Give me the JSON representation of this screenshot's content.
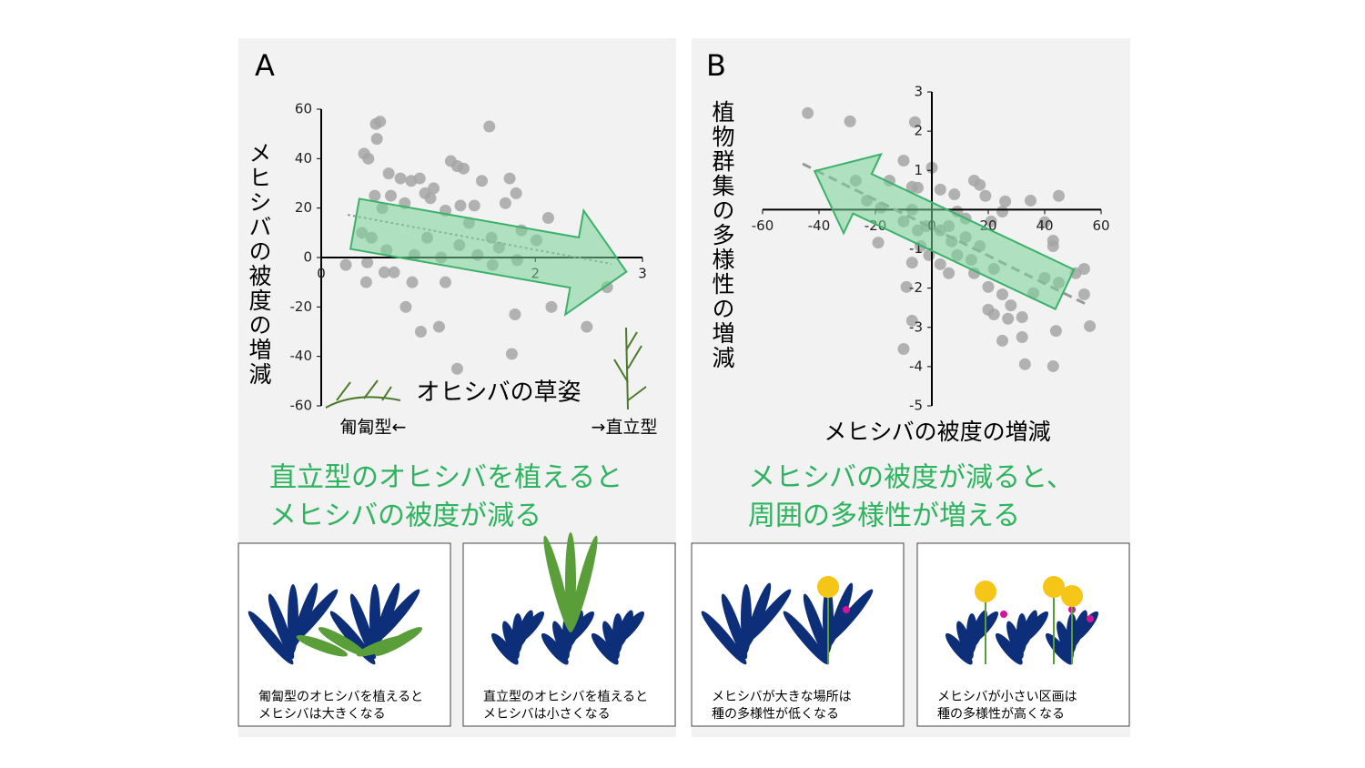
{
  "chart_data": [
    {
      "type": "scatter",
      "title": "A",
      "xlabel": "オヒシバの草姿",
      "ylabel": "メヒシバの被度の増減",
      "annotations": [
        "匍匐型←",
        "→直立型"
      ],
      "color": "#a6a6a6",
      "xlim": [
        0,
        3
      ],
      "ylim": [
        -60,
        60
      ],
      "xticks": [
        0,
        2,
        3
      ],
      "yticks": [
        -60,
        -40,
        -20,
        0,
        20,
        40,
        60
      ],
      "x": [
        0.51,
        0.55,
        0.52,
        0.4,
        0.44,
        0.63,
        0.74,
        0.84,
        1.57,
        1.21,
        1.27,
        1.33,
        1.5,
        1.76,
        1.82,
        1.72,
        1.43,
        1.3,
        0.92,
        0.97,
        1.02,
        1.05,
        1.16,
        1.38,
        1.59,
        1.66,
        1.87,
        2.12,
        1.83,
        1.6,
        1.12,
        0.85,
        0.68,
        0.59,
        0.43,
        0.42,
        0.23,
        0.93,
        1.1,
        0.79,
        1.27,
        1.81,
        1.78,
        2.15,
        2.48,
        2.67,
        1.16,
        0.5,
        0.57,
        0.61,
        0.38,
        0.47,
        0.99,
        1.29,
        1.46,
        0.87,
        2.01,
        0.65,
        0.78
      ],
      "values": [
        54,
        55,
        48,
        42,
        40,
        34,
        32,
        31,
        53,
        39,
        37,
        36,
        31,
        32,
        26,
        22,
        21,
        21,
        32,
        26,
        24,
        28,
        19,
        14,
        8,
        4,
        11,
        16,
        -1,
        -3,
        0,
        -10,
        -6,
        -6,
        -2,
        -10,
        -3,
        -30,
        -28,
        -20,
        -45,
        -23,
        -39,
        -20,
        -28,
        -12,
        -10,
        25,
        20,
        3,
        10,
        8,
        8,
        5,
        1,
        1,
        7,
        25,
        22
      ]
    },
    {
      "type": "scatter",
      "title": "B",
      "xlabel": "メヒシバの被度の増減",
      "ylabel": "植物群集の多様性の増減",
      "color": "#a6a6a6",
      "xlim": [
        -60,
        60
      ],
      "ylim": [
        -5,
        3
      ],
      "xticks": [
        -60,
        -40,
        -20,
        0,
        20,
        40,
        60
      ],
      "yticks": [
        -5,
        -4,
        -3,
        -2,
        -1,
        1,
        2,
        3
      ],
      "x": [
        -44,
        -29,
        -6,
        -10,
        0,
        -15,
        -27,
        -7,
        -5,
        3,
        8,
        15,
        17,
        19,
        26,
        35,
        45,
        40,
        43,
        43,
        25,
        21,
        12,
        6,
        3,
        -2,
        -7,
        -10,
        -19,
        -18,
        -23,
        -5,
        -4,
        -1,
        -7,
        -9,
        -7,
        -10,
        7,
        9,
        14,
        17,
        22,
        20,
        25,
        28,
        20,
        22,
        27,
        25,
        32,
        32,
        36,
        40,
        45,
        51,
        54,
        54,
        44,
        56,
        33,
        43,
        6,
        3,
        15,
        12,
        9
      ],
      "values": [
        2.46,
        2.25,
        2.23,
        1.25,
        1.07,
        0.74,
        0.74,
        0.58,
        0.56,
        0.51,
        0.39,
        0.74,
        0.63,
        0.35,
        0.21,
        0.23,
        0.35,
        -0.32,
        -0.79,
        -0.93,
        -0.05,
        -0.3,
        -0.23,
        -0.42,
        -0.53,
        -0.42,
        0,
        -0.3,
        -0.84,
        0.05,
        0.23,
        -0.53,
        -0.93,
        -1.16,
        -1.35,
        -1.97,
        -2.83,
        -3.55,
        -0.81,
        -1.16,
        -1.28,
        -0.93,
        -1.51,
        -1.97,
        -2.16,
        -2.44,
        -2.55,
        -2.67,
        -2.78,
        -3.34,
        -3.25,
        -2.74,
        -2.13,
        -1.74,
        -1.86,
        -1.62,
        -1.51,
        -2.16,
        -3.09,
        -2.97,
        -3.94,
        -3.99,
        -1.62,
        -1.39,
        -1.62,
        -0.7,
        -0.05
      ]
    }
  ],
  "captions": [
    [
      "直立型のオヒシバを植えると",
      "メヒシバの被度が減る"
    ],
    [
      "メヒシバの被度が減ると、",
      "周囲の多様性が増える"
    ]
  ],
  "boxes": [
    [
      "匍匐型のオヒシバを植えると",
      "メヒシバは大きくなる"
    ],
    [
      "直立型のオヒシバを植えると",
      "メヒシバは小さくなる"
    ],
    [
      "メヒシバが大きな場所は",
      "種の多様性が低くなる"
    ],
    [
      "メヒシバが小さい区画は",
      "種の多様性が高くなる"
    ]
  ]
}
